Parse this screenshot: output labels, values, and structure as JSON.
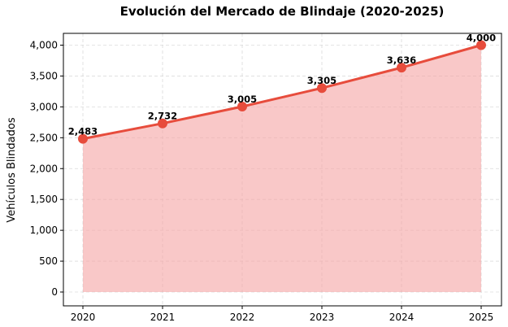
{
  "chart_data": {
    "type": "area",
    "title": "Evolución del Mercado de Blindaje (2020-2025)",
    "xlabel": "",
    "ylabel": "Vehículos Blindados",
    "categories": [
      "2020",
      "2021",
      "2022",
      "2023",
      "2024",
      "2025"
    ],
    "values": [
      2483,
      2732,
      3005,
      3305,
      3636,
      4000
    ],
    "data_labels": [
      "2,483",
      "2,732",
      "3,005",
      "3,305",
      "3,636",
      "4,000"
    ],
    "ylim": [
      0,
      4200
    ],
    "yticks": [
      0,
      500,
      1000,
      1500,
      2000,
      2500,
      3000,
      3500,
      4000
    ],
    "ytick_labels": [
      "0",
      "500",
      "1,000",
      "1,500",
      "2,000",
      "2,500",
      "3,000",
      "3,500",
      "4,000"
    ],
    "grid": true,
    "colors": {
      "line": "#e74c3c",
      "fill": "#f5a3a3",
      "marker": "#e74c3c"
    }
  }
}
